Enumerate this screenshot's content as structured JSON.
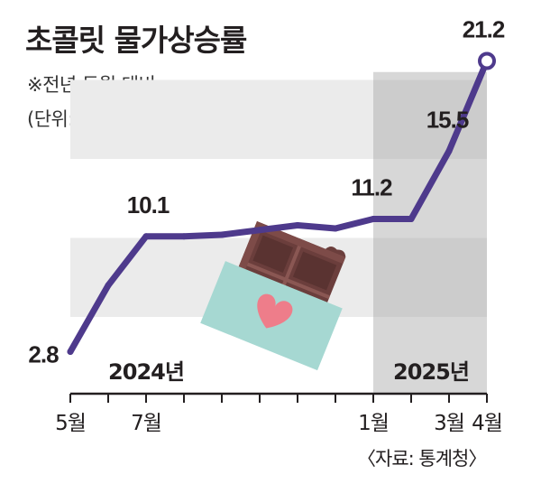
{
  "title": "초콜릿 물가상승률",
  "subtitle": "※전년 동월 대비",
  "unit_note": "(단위: %)",
  "source": "〈자료: 통계청〉",
  "colors": {
    "line": "#4e3a8c",
    "band": "#ebebeb",
    "band_2025": "#d7d7d7",
    "axis": "#231f20"
  },
  "chart_data": {
    "type": "line",
    "title": "초콜릿 물가상승률",
    "subtitle": "※전년 동월 대비",
    "unit": "%",
    "ylim": [
      0,
      22
    ],
    "x": [
      "2024-05",
      "2024-06",
      "2024-07",
      "2024-08",
      "2024-09",
      "2024-10",
      "2024-11",
      "2024-12",
      "2025-01",
      "2025-02",
      "2025-03",
      "2025-04"
    ],
    "values": [
      2.8,
      7.0,
      10.1,
      10.1,
      10.2,
      10.5,
      10.8,
      10.6,
      11.2,
      11.2,
      15.5,
      21.2
    ],
    "data_labels": [
      {
        "index": 0,
        "text": "2.8"
      },
      {
        "index": 2,
        "text": "10.1"
      },
      {
        "index": 8,
        "text": "11.2"
      },
      {
        "index": 10,
        "text": "15.5"
      },
      {
        "index": 11,
        "text": "21.2"
      }
    ],
    "tick_labels": [
      {
        "index": 0,
        "text": "5월"
      },
      {
        "index": 2,
        "text": "7월"
      },
      {
        "index": 8,
        "text": "1월"
      },
      {
        "index": 10,
        "text": "3월"
      },
      {
        "index": 11,
        "text": "4월"
      }
    ],
    "year_labels": [
      {
        "index": 2,
        "text": "2024년"
      },
      {
        "index": 10,
        "text": "2025년"
      }
    ]
  }
}
